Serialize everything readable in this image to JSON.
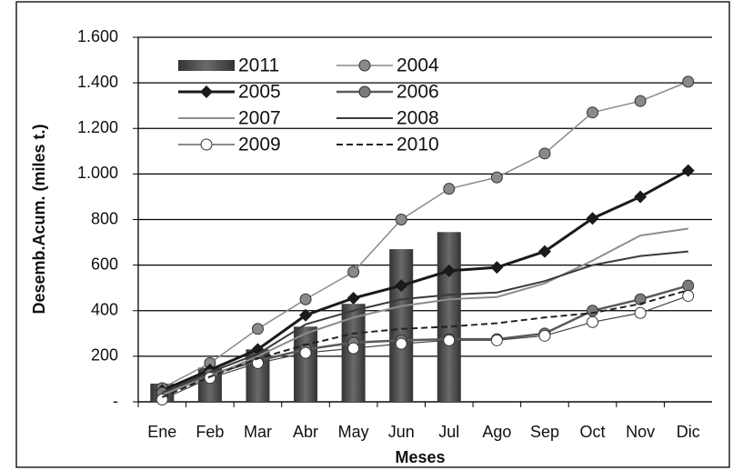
{
  "chart_data": {
    "type": "combo",
    "x_label": "Meses",
    "y_label": "Desemb.Acum. (miles t.)",
    "categories": [
      "Ene",
      "Feb",
      "Mar",
      "Abr",
      "May",
      "Jun",
      "Jul",
      "Ago",
      "Sep",
      "Oct",
      "Nov",
      "Dic"
    ],
    "ylim": [
      0,
      1600
    ],
    "yticks": [
      {
        "value": 0,
        "label": "-"
      },
      200,
      400,
      600,
      800,
      {
        "value": 1000,
        "label": "1.000"
      },
      {
        "value": 1200,
        "label": "1.200"
      },
      {
        "value": 1400,
        "label": "1.400"
      },
      {
        "value": 1600,
        "label": "1.600"
      }
    ],
    "grid": true,
    "legend": "upper left",
    "series": [
      {
        "name": "2011",
        "type": "bar",
        "color": "#6a6a6a",
        "values": [
          80,
          150,
          230,
          330,
          430,
          670,
          745,
          null,
          null,
          null,
          null,
          null
        ]
      },
      {
        "name": "2004",
        "type": "line",
        "color": "#8a8a8a",
        "width": 1.5,
        "marker": "circle",
        "marker_fill": "#8a8a8a",
        "values": [
          60,
          170,
          320,
          450,
          570,
          800,
          935,
          985,
          1090,
          1270,
          1320,
          1405
        ]
      },
      {
        "name": "2005",
        "type": "line",
        "color": "#1a1a1a",
        "width": 3,
        "marker": "diamond",
        "marker_fill": "#1a1a1a",
        "values": [
          50,
          140,
          230,
          380,
          455,
          510,
          575,
          590,
          660,
          805,
          900,
          1015
        ]
      },
      {
        "name": "2006",
        "type": "line",
        "color": "#5a5a5a",
        "width": 2.5,
        "marker": "circle",
        "marker_fill": "#7a7a7a",
        "values": [
          40,
          120,
          180,
          230,
          260,
          270,
          275,
          275,
          300,
          400,
          450,
          510
        ]
      },
      {
        "name": "2007",
        "type": "line",
        "color": "#8c8c8c",
        "width": 2,
        "marker": null,
        "values": [
          30,
          110,
          200,
          300,
          370,
          420,
          450,
          460,
          520,
          620,
          730,
          760
        ]
      },
      {
        "name": "2008",
        "type": "line",
        "color": "#3a3a3a",
        "width": 2,
        "marker": null,
        "values": [
          40,
          130,
          210,
          340,
          400,
          450,
          470,
          480,
          530,
          600,
          640,
          660
        ]
      },
      {
        "name": "2009",
        "type": "line",
        "color": "#444444",
        "width": 1.2,
        "marker": "circle",
        "marker_fill": "#ffffff",
        "values": [
          10,
          105,
          170,
          215,
          235,
          255,
          270,
          270,
          290,
          350,
          390,
          465
        ]
      },
      {
        "name": "2010",
        "type": "line",
        "color": "#222222",
        "width": 2,
        "dash": "7 4",
        "marker": null,
        "values": [
          20,
          110,
          190,
          250,
          300,
          320,
          330,
          345,
          370,
          390,
          430,
          490
        ]
      }
    ]
  }
}
